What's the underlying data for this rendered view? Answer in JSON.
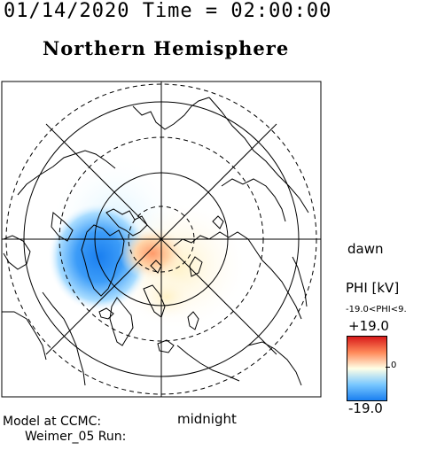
{
  "header": {
    "title": "01/14/2020 Time = 02:00:00",
    "subtitle": "Northern Hemisphere"
  },
  "labels": {
    "dawn": "dawn",
    "midnight": "midnight"
  },
  "colorbar": {
    "quantity": "PHI [kV]",
    "range_text": "-19.0<PHI<9.",
    "max_label": "+19.0",
    "zero_label": "0",
    "min_label": "-19.0",
    "colors": {
      "positive": "#d81a1a",
      "neutral": "#ffffe6",
      "negative": "#1a7ff0"
    }
  },
  "footer": {
    "model_line": "Model at CCMC:",
    "run_line": "Weimer_05 Run:"
  },
  "map": {
    "projection": "polar-stereographic",
    "latitude_rings_deg": [
      50,
      60,
      70,
      80
    ],
    "longitude_grid_step_deg": 45,
    "min_latitude_deg": 45
  }
}
